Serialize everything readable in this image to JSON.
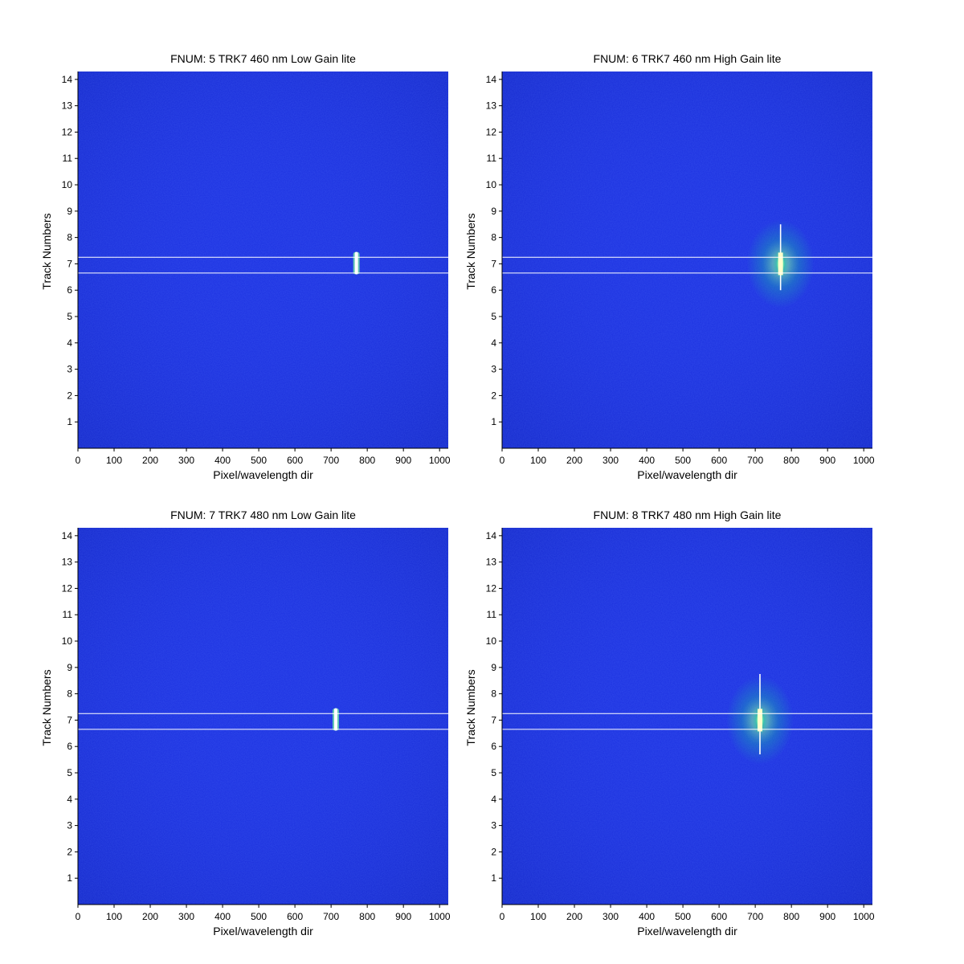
{
  "figure": {
    "background": "#ffffff",
    "plot_background": "#1a2fe0"
  },
  "chart_data": [
    {
      "type": "heatmap",
      "title": "FNUM: 5 TRK7 460 nm Low Gain lite",
      "xlabel": "Pixel/wavelength dir",
      "ylabel": "Track Numbers",
      "xlim": [
        0,
        1024
      ],
      "ylim": [
        0,
        14.3
      ],
      "x_ticks": [
        0,
        100,
        200,
        300,
        400,
        500,
        600,
        700,
        800,
        900,
        1000
      ],
      "y_ticks": [
        1,
        2,
        3,
        4,
        5,
        6,
        7,
        8,
        9,
        10,
        11,
        12,
        13,
        14
      ],
      "track_lines_y": [
        6.65,
        7.25
      ],
      "spot": {
        "x": 770,
        "y": 7.0,
        "y_span": [
          6.6,
          7.45
        ],
        "intensity": "low"
      },
      "colormap": {
        "background": "#1a2fe0",
        "halo": "#17c9a0",
        "peak": "#ffffcc"
      }
    },
    {
      "type": "heatmap",
      "title": "FNUM: 6 TRK7 460 nm High Gain lite",
      "xlabel": "Pixel/wavelength dir",
      "ylabel": "Track Numbers",
      "xlim": [
        0,
        1024
      ],
      "ylim": [
        0,
        14.3
      ],
      "x_ticks": [
        0,
        100,
        200,
        300,
        400,
        500,
        600,
        700,
        800,
        900,
        1000
      ],
      "y_ticks": [
        1,
        2,
        3,
        4,
        5,
        6,
        7,
        8,
        9,
        10,
        11,
        12,
        13,
        14
      ],
      "track_lines_y": [
        6.65,
        7.25
      ],
      "spot": {
        "x": 770,
        "y": 7.0,
        "y_span": [
          6.0,
          8.5
        ],
        "intensity": "high"
      },
      "colormap": {
        "background": "#1a2fe0",
        "halo": "#17c9a0",
        "peak": "#ffffcc"
      }
    },
    {
      "type": "heatmap",
      "title": "FNUM: 7 TRK7 480 nm Low Gain lite",
      "xlabel": "Pixel/wavelength dir",
      "ylabel": "Track Numbers",
      "xlim": [
        0,
        1024
      ],
      "ylim": [
        0,
        14.3
      ],
      "x_ticks": [
        0,
        100,
        200,
        300,
        400,
        500,
        600,
        700,
        800,
        900,
        1000
      ],
      "y_ticks": [
        1,
        2,
        3,
        4,
        5,
        6,
        7,
        8,
        9,
        10,
        11,
        12,
        13,
        14
      ],
      "track_lines_y": [
        6.65,
        7.25
      ],
      "spot": {
        "x": 713,
        "y": 7.0,
        "y_span": [
          6.6,
          7.45
        ],
        "intensity": "low"
      },
      "colormap": {
        "background": "#1a2fe0",
        "halo": "#17c9a0",
        "peak": "#ffffcc"
      }
    },
    {
      "type": "heatmap",
      "title": "FNUM: 8 TRK7 480 nm High Gain lite",
      "xlabel": "Pixel/wavelength dir",
      "ylabel": "Track Numbers",
      "xlim": [
        0,
        1024
      ],
      "ylim": [
        0,
        14.3
      ],
      "x_ticks": [
        0,
        100,
        200,
        300,
        400,
        500,
        600,
        700,
        800,
        900,
        1000
      ],
      "y_ticks": [
        1,
        2,
        3,
        4,
        5,
        6,
        7,
        8,
        9,
        10,
        11,
        12,
        13,
        14
      ],
      "track_lines_y": [
        6.65,
        7.25
      ],
      "spot": {
        "x": 713,
        "y": 7.0,
        "y_span": [
          5.7,
          8.75
        ],
        "intensity": "high"
      },
      "colormap": {
        "background": "#1a2fe0",
        "halo": "#17c9a0",
        "peak": "#ffffcc"
      }
    }
  ]
}
